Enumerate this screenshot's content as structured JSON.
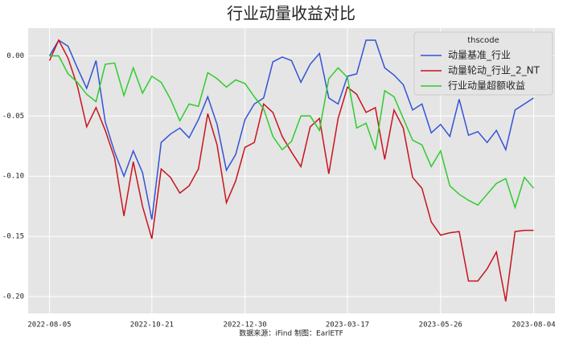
{
  "chart_data": {
    "type": "line",
    "title": "行业动量收益对比",
    "footer": "数据来源：iFind 制图：EarlETF",
    "legend_title": "thscode",
    "legend": "upper right",
    "grid": true,
    "x": [
      "2022-08-05",
      "2022-08-12",
      "2022-08-19",
      "2022-08-26",
      "2022-09-02",
      "2022-09-09",
      "2022-09-16",
      "2022-09-23",
      "2022-09-30",
      "2022-10-07",
      "2022-10-14",
      "2022-10-21",
      "2022-10-28",
      "2022-11-04",
      "2022-11-11",
      "2022-11-18",
      "2022-11-25",
      "2022-12-02",
      "2022-12-09",
      "2022-12-16",
      "2022-12-23",
      "2022-12-30",
      "2023-01-06",
      "2023-01-13",
      "2023-01-20",
      "2023-01-27",
      "2023-02-03",
      "2023-02-10",
      "2023-02-17",
      "2023-02-24",
      "2023-03-03",
      "2023-03-10",
      "2023-03-17",
      "2023-03-24",
      "2023-03-31",
      "2023-04-07",
      "2023-04-14",
      "2023-04-21",
      "2023-04-28",
      "2023-05-05",
      "2023-05-12",
      "2023-05-19",
      "2023-05-26",
      "2023-06-02",
      "2023-06-09",
      "2023-06-16",
      "2023-06-23",
      "2023-06-30",
      "2023-07-07",
      "2023-07-14",
      "2023-07-21",
      "2023-07-28",
      "2023-08-04"
    ],
    "xlim": [
      "2022-07-20",
      "2023-08-20"
    ],
    "xticks": [
      "2022-08-05",
      "2022-10-21",
      "2022-12-30",
      "2023-03-17",
      "2023-05-26",
      "2023-08-04"
    ],
    "ylim": [
      -0.214,
      0.023
    ],
    "yticks": [
      {
        "value": 0,
        "label": "0.00"
      },
      {
        "value": -0.05,
        "label": "-0.05"
      },
      {
        "value": -0.1,
        "label": "-0.10"
      },
      {
        "value": -0.15,
        "label": "-0.15"
      },
      {
        "value": -0.2,
        "label": "-0.20"
      }
    ],
    "series": [
      {
        "name": "动量基准_行业",
        "color": "#3552d6",
        "values": [
          0,
          0.013,
          0.008,
          -0.01,
          -0.027,
          -0.004,
          -0.055,
          -0.08,
          -0.1,
          -0.079,
          -0.097,
          -0.136,
          -0.072,
          -0.065,
          -0.06,
          -0.068,
          -0.053,
          -0.034,
          -0.057,
          -0.095,
          -0.082,
          -0.053,
          -0.04,
          -0.035,
          -0.005,
          -0.001,
          -0.004,
          -0.022,
          -0.007,
          0.002,
          -0.035,
          -0.04,
          -0.017,
          -0.015,
          0.013,
          0.013,
          -0.01,
          -0.016,
          -0.024,
          -0.045,
          -0.04,
          -0.064,
          -0.057,
          -0.067,
          -0.036,
          -0.066,
          -0.063,
          -0.072,
          -0.062,
          -0.078,
          -0.045,
          -0.04,
          -0.035
        ]
      },
      {
        "name": "动量轮动_行业_2_NT",
        "color": "#c8141e",
        "values": [
          -0.004,
          0.013,
          -0.002,
          -0.025,
          -0.059,
          -0.043,
          -0.062,
          -0.085,
          -0.133,
          -0.088,
          -0.125,
          -0.152,
          -0.094,
          -0.101,
          -0.114,
          -0.108,
          -0.094,
          -0.048,
          -0.074,
          -0.122,
          -0.104,
          -0.076,
          -0.072,
          -0.04,
          -0.047,
          -0.067,
          -0.08,
          -0.092,
          -0.059,
          -0.052,
          -0.098,
          -0.052,
          -0.026,
          -0.032,
          -0.047,
          -0.043,
          -0.086,
          -0.045,
          -0.06,
          -0.101,
          -0.11,
          -0.138,
          -0.149,
          -0.147,
          -0.146,
          -0.187,
          -0.187,
          -0.177,
          -0.163,
          -0.204,
          -0.146,
          -0.145,
          -0.145
        ]
      },
      {
        "name": "行业动量超额收益",
        "color": "#2fcc2f",
        "values": [
          0,
          0,
          -0.015,
          -0.022,
          -0.032,
          -0.038,
          -0.007,
          -0.006,
          -0.033,
          -0.01,
          -0.031,
          -0.017,
          -0.022,
          -0.036,
          -0.054,
          -0.04,
          -0.042,
          -0.014,
          -0.019,
          -0.026,
          -0.02,
          -0.023,
          -0.034,
          -0.044,
          -0.067,
          -0.078,
          -0.071,
          -0.05,
          -0.05,
          -0.062,
          -0.019,
          -0.01,
          -0.018,
          -0.06,
          -0.056,
          -0.078,
          -0.029,
          -0.034,
          -0.052,
          -0.07,
          -0.074,
          -0.092,
          -0.079,
          -0.108,
          -0.115,
          -0.12,
          -0.124,
          -0.115,
          -0.106,
          -0.102,
          -0.126,
          -0.101,
          -0.11
        ]
      }
    ]
  }
}
